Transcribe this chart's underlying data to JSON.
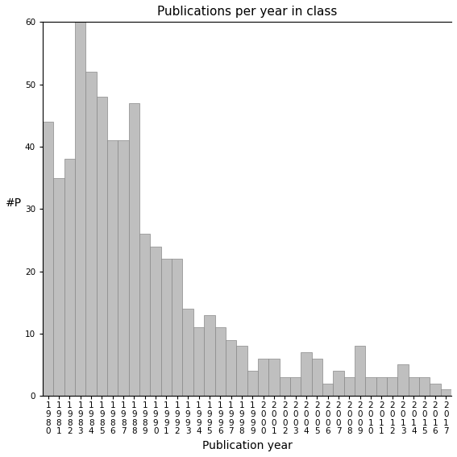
{
  "title": "Publications per year in class",
  "xlabel": "Publication year",
  "ylabel": "#P",
  "categories": [
    "1980",
    "1981",
    "1982",
    "1983",
    "1984",
    "1985",
    "1986",
    "1987",
    "1988",
    "1989",
    "1990",
    "1991",
    "1992",
    "1993",
    "1994",
    "1995",
    "1996",
    "1997",
    "1998",
    "1999",
    "2000",
    "2001",
    "2002",
    "2003",
    "2004",
    "2005",
    "2006",
    "2007",
    "2008",
    "2009",
    "2010",
    "2011",
    "2012",
    "2013",
    "2014",
    "2015",
    "2016",
    "2017"
  ],
  "values": [
    44,
    35,
    38,
    60,
    52,
    48,
    41,
    41,
    47,
    26,
    24,
    22,
    22,
    14,
    11,
    13,
    11,
    9,
    8,
    4,
    6,
    6,
    3,
    3,
    7,
    6,
    2,
    4,
    3,
    8,
    3,
    3,
    3,
    5,
    3,
    3,
    2,
    1
  ],
  "bar_color": "#bfbfbf",
  "bar_edgecolor": "#888888",
  "background_color": "#ffffff",
  "ylim": [
    0,
    60
  ],
  "yticks": [
    0,
    10,
    20,
    30,
    40,
    50,
    60
  ],
  "title_fontsize": 11,
  "label_fontsize": 10,
  "tick_fontsize": 7.5
}
